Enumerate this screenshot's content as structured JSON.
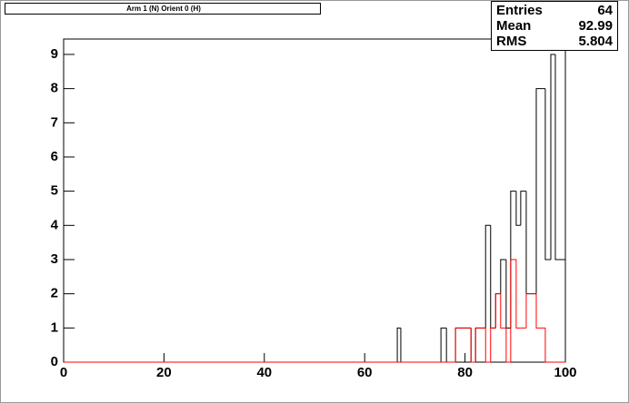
{
  "chart_data": {
    "type": "histogram",
    "title": "Arm 1 (N) Orient 0 (H)",
    "bins": [
      0,
      66.5,
      67.2,
      75.2,
      76.3,
      78.1,
      81.2,
      82.1,
      84.1,
      85.1,
      86.1,
      87.1,
      88.2,
      89.1,
      90.2,
      91.1,
      92.2,
      94.2,
      96,
      97.1,
      98,
      100
    ],
    "series": [
      {
        "color": "#000000",
        "values": [
          0,
          1,
          0,
          1,
          0,
          1,
          0,
          1,
          4,
          1,
          2,
          3,
          1,
          5,
          4,
          5,
          2,
          8,
          3,
          9,
          3
        ]
      },
      {
        "color": "#ff0000",
        "values": [
          0,
          0,
          0,
          0,
          0,
          1,
          0,
          1,
          0,
          1,
          2,
          1,
          0,
          3,
          1,
          1,
          2,
          1,
          0,
          0,
          0
        ]
      }
    ],
    "xlim": [
      0,
      100
    ],
    "xticks": [
      0,
      20,
      40,
      60,
      80,
      100
    ],
    "ylim": [
      0,
      9.45
    ],
    "yticks": [
      0,
      1,
      2,
      3,
      4,
      5,
      6,
      7,
      8,
      9
    ],
    "stats": [
      {
        "label": "Entries",
        "value": 64
      },
      {
        "label": "Mean",
        "value": 92.99
      },
      {
        "label": "RMS",
        "value": 5.804
      }
    ]
  }
}
